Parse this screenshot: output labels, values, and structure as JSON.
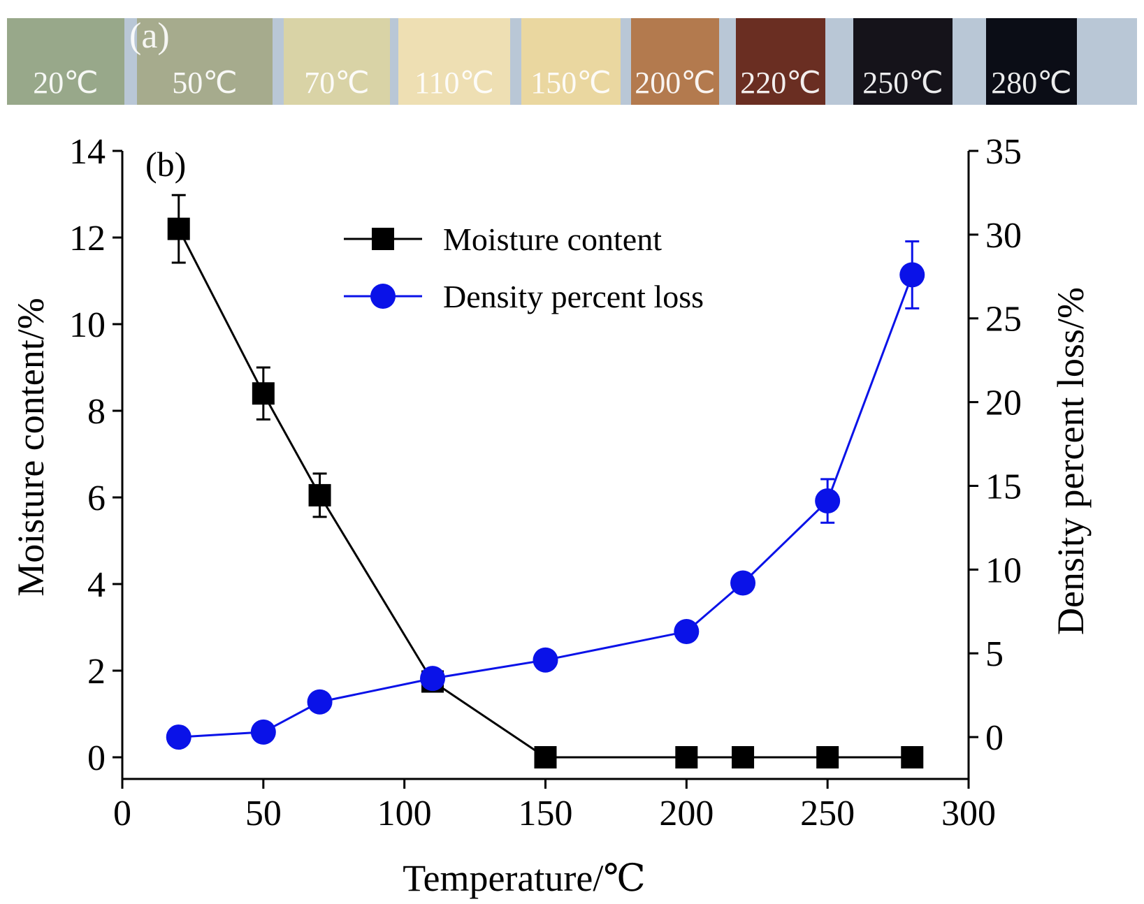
{
  "strip": {
    "panel_label": "(a)",
    "samples": [
      {
        "label": "20℃",
        "color": "#98a88a"
      },
      {
        "label": "50℃",
        "color": "#a6ab8d"
      },
      {
        "label": "70℃",
        "color": "#d9d3a6"
      },
      {
        "label": "110℃",
        "color": "#eedfb3"
      },
      {
        "label": "150℃",
        "color": "#ead7a0"
      },
      {
        "label": "200℃",
        "color": "#b37a4e"
      },
      {
        "label": "220℃",
        "color": "#6a2e22"
      },
      {
        "label": "250℃",
        "color": "#15131a"
      },
      {
        "label": "280℃",
        "color": "#0b0d16"
      }
    ]
  },
  "chart_data": {
    "type": "line",
    "panel_label": "(b)",
    "xlabel": "Temperature/℃",
    "ylabel_left": "Moisture content/%",
    "ylabel_right": "Density percent loss/%",
    "xlim": [
      0,
      300
    ],
    "xticks": [
      0,
      50,
      100,
      150,
      200,
      250,
      300
    ],
    "ylim_left": [
      -0.5,
      14
    ],
    "yticks_left": [
      0,
      2,
      4,
      6,
      8,
      10,
      12,
      14
    ],
    "ylim_right": [
      -2.5,
      35
    ],
    "yticks_right": [
      0,
      5,
      10,
      15,
      20,
      25,
      30,
      35
    ],
    "grid": false,
    "legend_position": "top-center",
    "series": [
      {
        "name": "Moisture content",
        "axis": "left",
        "marker": "square",
        "color": "#000000",
        "x": [
          20,
          50,
          70,
          110,
          150,
          200,
          220,
          250,
          280
        ],
        "y": [
          12.2,
          8.4,
          6.05,
          1.75,
          0,
          0,
          0,
          0,
          0
        ],
        "error": [
          0.78,
          0.6,
          0.5,
          0,
          0,
          0,
          0,
          0,
          0
        ]
      },
      {
        "name": "Density percent loss",
        "axis": "right",
        "marker": "circle",
        "color": "#0a12e8",
        "x": [
          20,
          50,
          70,
          110,
          150,
          200,
          220,
          250,
          280
        ],
        "y": [
          0,
          0.3,
          2.1,
          3.5,
          4.6,
          6.3,
          9.2,
          14.1,
          27.6
        ],
        "error": [
          0,
          0,
          0,
          0,
          0,
          0,
          0,
          1.3,
          2.0
        ]
      }
    ]
  }
}
